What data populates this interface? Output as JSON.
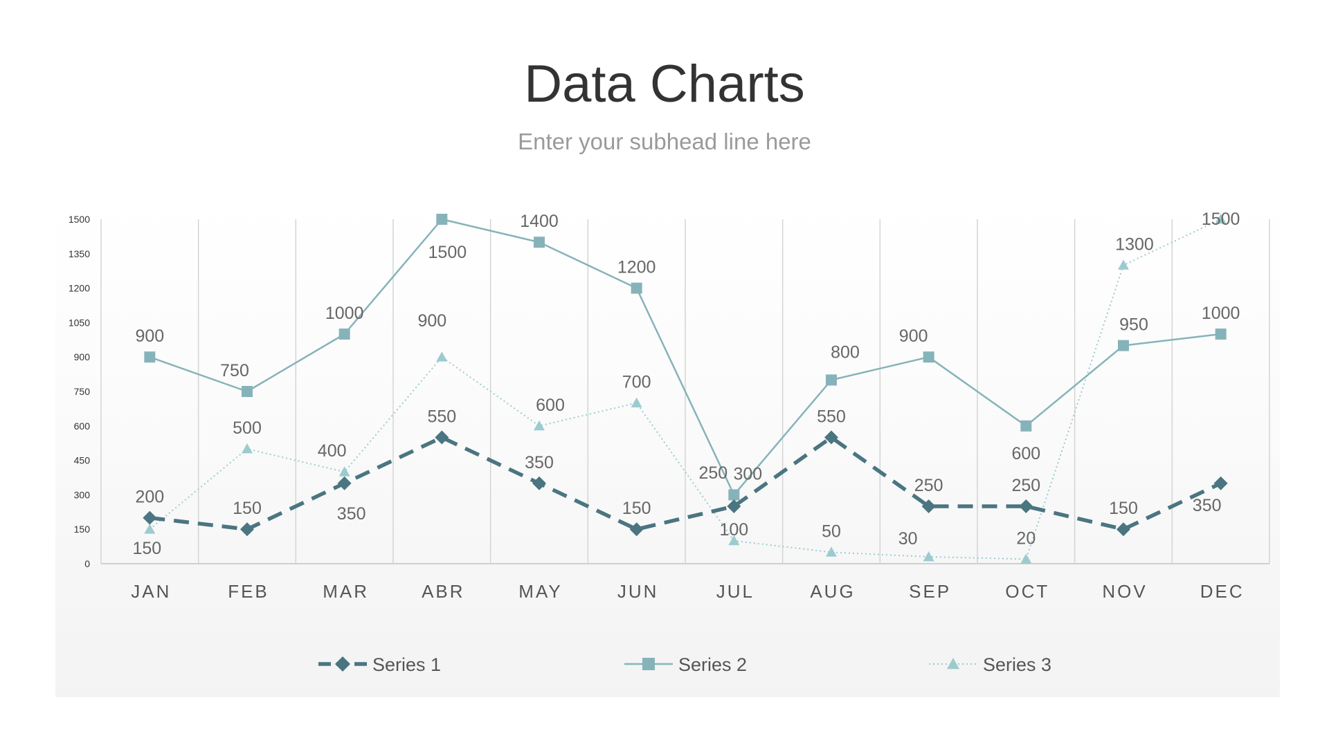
{
  "header": {
    "title": "Data Charts",
    "subtitle": "Enter your subhead line here"
  },
  "colors": {
    "series1": "#4a7581",
    "series2": "#86b3b9",
    "series3": "#9ccbcf",
    "grid": "#d4d4d4",
    "axis": "#cfcfcf"
  },
  "chart_data": {
    "type": "line",
    "title": "",
    "xlabel": "",
    "ylabel": "",
    "ylim": [
      0,
      1500
    ],
    "yticks": [
      0,
      150,
      300,
      450,
      600,
      750,
      900,
      1050,
      1200,
      1350,
      1500
    ],
    "grid": "vertical",
    "legend_position": "bottom",
    "categories": [
      "JAN",
      "FEB",
      "MAR",
      "ABR",
      "MAY",
      "JUN",
      "JUL",
      "AUG",
      "SEP",
      "OCT",
      "NOV",
      "DEC"
    ],
    "series": [
      {
        "name": "Series 1",
        "style": "dashed",
        "marker": "diamond",
        "color": "#4a7581",
        "values": [
          200,
          150,
          350,
          550,
          350,
          150,
          250,
          550,
          250,
          250,
          150,
          350
        ]
      },
      {
        "name": "Series 2",
        "style": "solid",
        "marker": "square",
        "color": "#86b3b9",
        "values": [
          900,
          750,
          1000,
          1500,
          1400,
          1200,
          300,
          800,
          900,
          600,
          950,
          1000
        ]
      },
      {
        "name": "Series 3",
        "style": "dotted",
        "marker": "triangle",
        "color": "#9ccbcf",
        "values": [
          150,
          500,
          400,
          900,
          600,
          700,
          100,
          50,
          30,
          20,
          1300,
          1500
        ]
      }
    ]
  }
}
